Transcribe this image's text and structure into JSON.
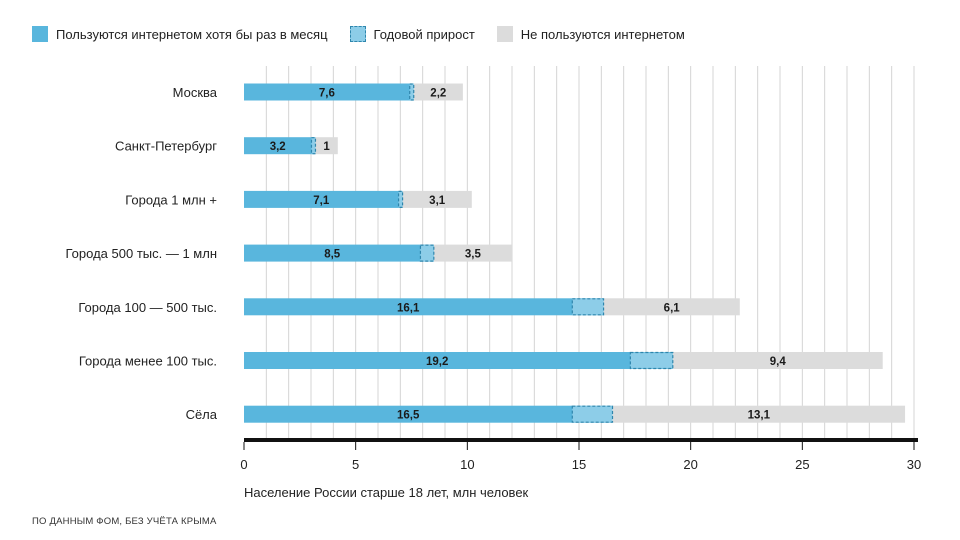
{
  "legend": {
    "internet_users": "Пользуются интернетом хотя бы раз в месяц",
    "annual_growth": "Годовой прирост",
    "non_users": "Не пользуются интернетом"
  },
  "footnote": "ПО ДАННЫМ ФОМ, БЕЗ УЧЁТА КРЫМА",
  "colors": {
    "internet_users": "#59b6dd",
    "annual_growth": "#8dcde8",
    "growth_border": "#2f86ad",
    "non_users": "#dcdcdc",
    "axis": "#111111",
    "grid": "#d4d4d4"
  },
  "chart_data": {
    "type": "bar",
    "orientation": "horizontal",
    "stacked": true,
    "xlabel": "Население России старше 18 лет, млн человек",
    "xlim": [
      0,
      30
    ],
    "xticks": [
      0,
      5,
      10,
      15,
      20,
      25,
      30
    ],
    "grid": "vertical",
    "legend_position": "top",
    "categories": [
      "Москва",
      "Санкт-Петербург",
      "Города 1 млн +",
      "Города 500 тыс. — 1 млн",
      "Города 100 — 500 тыс.",
      "Города менее 100 тыс.",
      "Сёла"
    ],
    "series": [
      {
        "name": "Пользуются интернетом хотя бы раз в месяц",
        "values": [
          7.6,
          3.2,
          7.1,
          8.5,
          16.1,
          19.2,
          16.5
        ],
        "labels": [
          "7,6",
          "3,2",
          "7,1",
          "8,5",
          "16,1",
          "19,2",
          "16,5"
        ]
      },
      {
        "name": "Годовой прирост",
        "values": [
          0.0,
          0.0,
          0.1,
          0.6,
          1.4,
          1.9,
          1.8
        ]
      },
      {
        "name": "Не пользуются интернетом",
        "values": [
          2.2,
          1,
          3.1,
          3.5,
          6.1,
          9.4,
          13.1
        ],
        "labels": [
          "2,2",
          "1",
          "3,1",
          "3,5",
          "6,1",
          "9,4",
          "13,1"
        ]
      }
    ]
  }
}
